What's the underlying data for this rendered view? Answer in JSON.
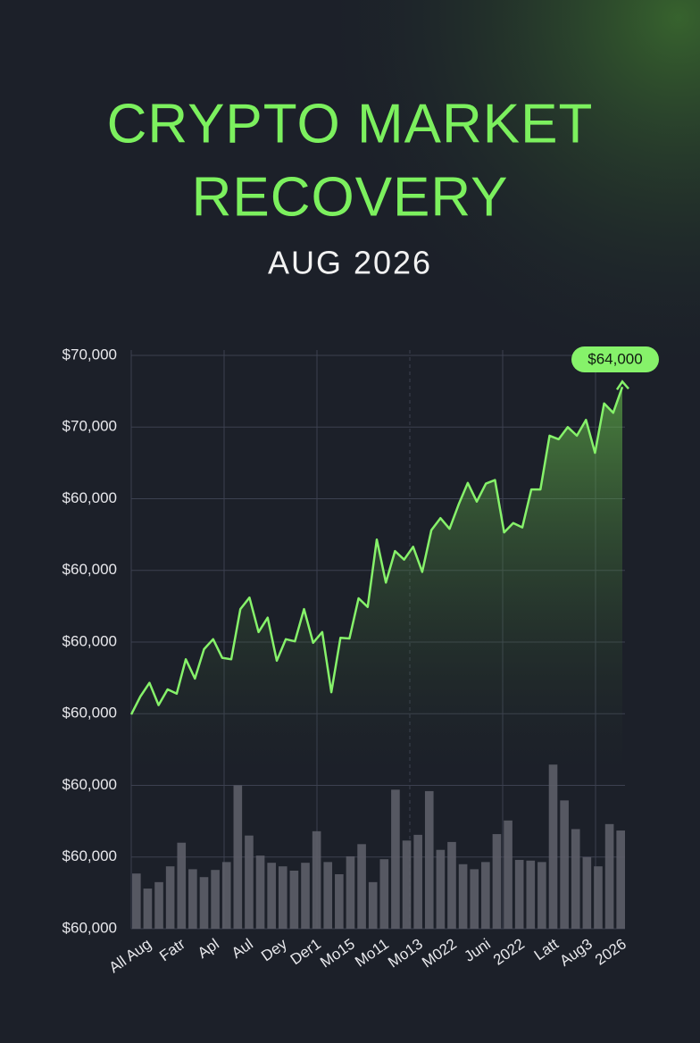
{
  "chart_data": {
    "type": "line",
    "title": "CRYPTO MARKET RECOVERY",
    "subtitle": "AUG 2026",
    "annotation": "$64,000",
    "ylim": [
      0,
      8
    ],
    "yticks": [
      {
        "value": 0,
        "label": "$60,000"
      },
      {
        "value": 1,
        "label": "$60,000"
      },
      {
        "value": 2,
        "label": "$60,000"
      },
      {
        "value": 3,
        "label": "$60,000"
      },
      {
        "value": 4,
        "label": "$60,000"
      },
      {
        "value": 5,
        "label": "$60,000"
      },
      {
        "value": 6,
        "label": "$60,000"
      },
      {
        "value": 7,
        "label": "$70,000"
      },
      {
        "value": 8,
        "label": "$70,000"
      }
    ],
    "x_labels": [
      "All Aug",
      "Fatr",
      "Apl",
      "Aul",
      "Dey",
      "Der1",
      "Mo15",
      "Mo11",
      "Mo13",
      "M022",
      "Juni",
      "2022",
      "Latt",
      "Aug3",
      "2026"
    ],
    "line_color": "#86f26a",
    "values": [
      2.99,
      3.24,
      3.43,
      3.12,
      3.34,
      3.28,
      3.76,
      3.49,
      3.9,
      4.04,
      3.78,
      3.76,
      4.46,
      4.62,
      4.14,
      4.34,
      3.74,
      4.04,
      4.01,
      4.46,
      3.99,
      4.14,
      3.3,
      4.06,
      4.05,
      4.61,
      4.49,
      5.43,
      4.83,
      5.27,
      5.15,
      5.33,
      4.98,
      5.56,
      5.73,
      5.58,
      5.92,
      6.22,
      5.96,
      6.21,
      6.26,
      5.53,
      5.66,
      5.6,
      6.13,
      6.13,
      6.88,
      6.83,
      7.0,
      6.88,
      7.1,
      6.64,
      7.33,
      7.2,
      7.56
    ],
    "bar_color": "#5d5e68",
    "bar_values": [
      0.77,
      0.56,
      0.65,
      0.87,
      1.2,
      0.83,
      0.72,
      0.82,
      0.93,
      2.0,
      1.3,
      1.02,
      0.92,
      0.87,
      0.81,
      0.92,
      1.36,
      0.93,
      0.76,
      1.01,
      1.18,
      0.65,
      0.97,
      1.94,
      1.23,
      1.31,
      1.92,
      1.1,
      1.21,
      0.9,
      0.83,
      0.93,
      1.32,
      1.51,
      0.96,
      0.95,
      0.93,
      2.29,
      1.79,
      1.39,
      1.0,
      0.87,
      1.46,
      1.37
    ]
  }
}
